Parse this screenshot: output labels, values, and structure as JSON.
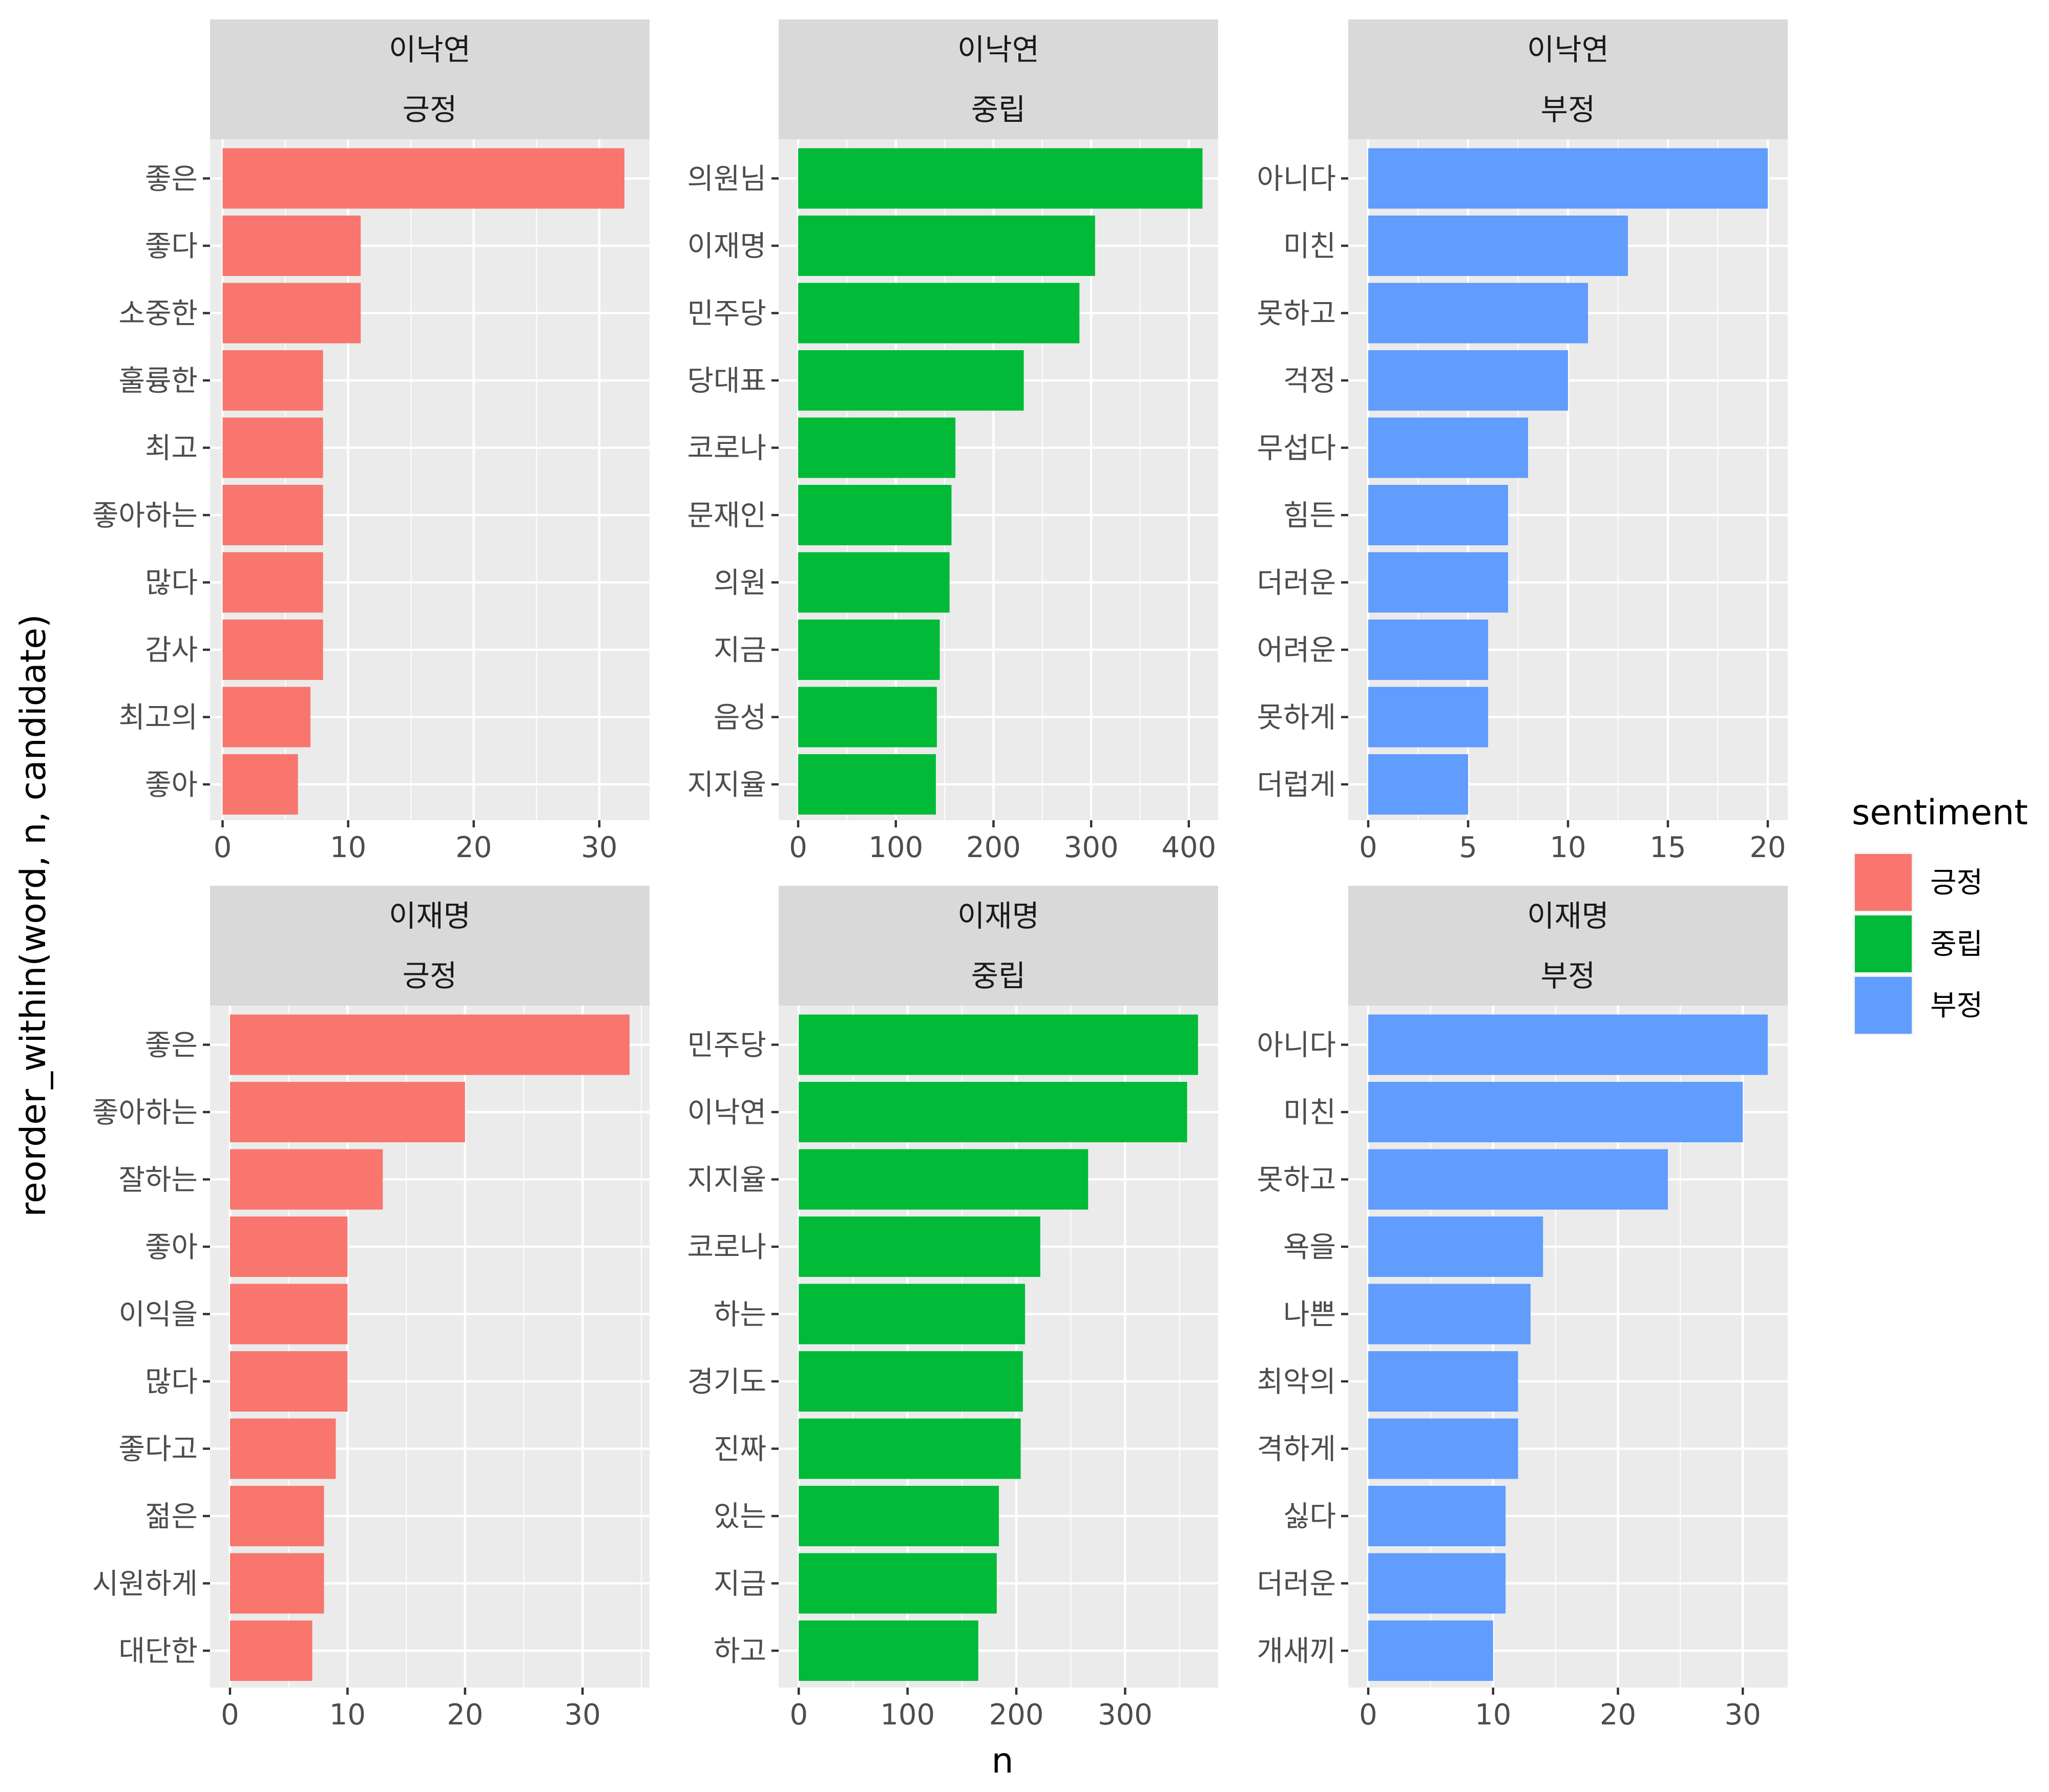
{
  "chart_data": {
    "type": "bar",
    "orientation": "horizontal",
    "xlabel": "n",
    "ylabel": "reorder_within(word, n, candidate)",
    "grid": true,
    "legend": {
      "title": "sentiment",
      "placement": "right",
      "entries": [
        {
          "name": "긍정",
          "color": "#F8766D"
        },
        {
          "name": "중립",
          "color": "#00BA38"
        },
        {
          "name": "부정",
          "color": "#619CFF"
        }
      ]
    },
    "panels": [
      {
        "candidate": "이낙연",
        "sentiment": "긍정",
        "color": "#F8766D",
        "xlim": [
          -1,
          34
        ],
        "xticks": [
          0,
          10,
          20,
          30
        ],
        "minor_step": 5,
        "categories": [
          "좋은",
          "좋다",
          "소중한",
          "훌륭한",
          "최고",
          "좋아하는",
          "많다",
          "감사",
          "최고의",
          "좋아"
        ],
        "values": [
          32,
          11,
          11,
          8,
          8,
          8,
          8,
          8,
          7,
          6
        ]
      },
      {
        "candidate": "이낙연",
        "sentiment": "중립",
        "color": "#00BA38",
        "xlim": [
          -20,
          430
        ],
        "xticks": [
          0,
          100,
          200,
          300,
          400
        ],
        "minor_step": 50,
        "categories": [
          "의원님",
          "이재명",
          "민주당",
          "당대표",
          "코로나",
          "문재인",
          "의원",
          "지금",
          "음성",
          "지지율"
        ],
        "values": [
          414,
          304,
          288,
          231,
          161,
          157,
          155,
          145,
          142,
          141
        ]
      },
      {
        "candidate": "이낙연",
        "sentiment": "부정",
        "color": "#619CFF",
        "xlim": [
          -1,
          21
        ],
        "xticks": [
          0,
          5,
          10,
          15,
          20
        ],
        "minor_step": 2.5,
        "categories": [
          "아니다",
          "미친",
          "못하고",
          "걱정",
          "무섭다",
          "힘든",
          "더러운",
          "어려운",
          "못하게",
          "더럽게"
        ],
        "values": [
          20,
          13,
          11,
          10,
          8,
          7,
          7,
          6,
          6,
          5
        ]
      },
      {
        "candidate": "이재명",
        "sentiment": "긍정",
        "color": "#F8766D",
        "xlim": [
          -1.7,
          35.7
        ],
        "xticks": [
          0,
          10,
          20,
          30
        ],
        "minor_step": 5,
        "categories": [
          "좋은",
          "좋아하는",
          "잘하는",
          "좋아",
          "이익을",
          "많다",
          "좋다고",
          "젊은",
          "시원하게",
          "대단한"
        ],
        "values": [
          34,
          20,
          13,
          10,
          10,
          10,
          9,
          8,
          8,
          7
        ]
      },
      {
        "candidate": "이재명",
        "sentiment": "중립",
        "color": "#00BA38",
        "xlim": [
          -18.5,
          385.5
        ],
        "xticks": [
          0,
          100,
          200,
          300
        ],
        "minor_step": 50,
        "categories": [
          "민주당",
          "이낙연",
          "지지율",
          "코로나",
          "하는",
          "경기도",
          "진짜",
          "있는",
          "지금",
          "하고"
        ],
        "values": [
          367,
          357,
          266,
          222,
          208,
          206,
          204,
          184,
          182,
          165
        ]
      },
      {
        "candidate": "이재명",
        "sentiment": "부정",
        "color": "#619CFF",
        "xlim": [
          -1.6,
          33.6
        ],
        "xticks": [
          0,
          10,
          20,
          30
        ],
        "minor_step": 5,
        "categories": [
          "아니다",
          "미친",
          "못하고",
          "욕을",
          "나쁜",
          "최악의",
          "격하게",
          "싫다",
          "더러운",
          "개새끼"
        ],
        "values": [
          32,
          30,
          24,
          14,
          13,
          12,
          12,
          11,
          11,
          10
        ]
      }
    ]
  }
}
